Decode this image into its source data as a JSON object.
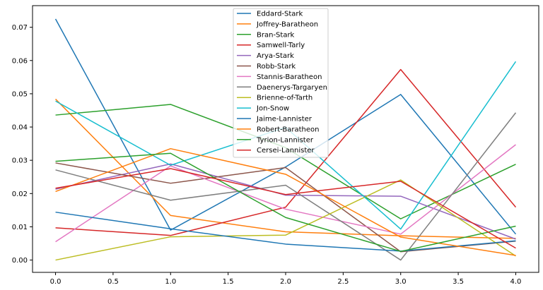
{
  "chart_data": {
    "type": "line",
    "title": "",
    "xlabel": "",
    "ylabel": "",
    "x": [
      0,
      1,
      2,
      3,
      4
    ],
    "xlim": [
      -0.2,
      4.2
    ],
    "ylim": [
      -0.0037,
      0.0765
    ],
    "xticks": [
      0.0,
      0.5,
      1.0,
      1.5,
      2.0,
      2.5,
      3.0,
      3.5,
      4.0
    ],
    "xtick_labels": [
      "0.0",
      "0.5",
      "1.0",
      "1.5",
      "2.0",
      "2.5",
      "3.0",
      "3.5",
      "4.0"
    ],
    "yticks": [
      0.0,
      0.01,
      0.02,
      0.03,
      0.04,
      0.05,
      0.06,
      0.07
    ],
    "ytick_labels": [
      "0.00",
      "0.01",
      "0.02",
      "0.03",
      "0.04",
      "0.05",
      "0.06",
      "0.07"
    ],
    "grid": false,
    "legend_position": "top-center",
    "series": [
      {
        "name": "Eddard-Stark",
        "color": "#1f77b4",
        "values": [
          0.0725,
          0.009,
          0.028,
          0.0498,
          0.0078
        ]
      },
      {
        "name": "Joffrey-Baratheon",
        "color": "#ff7f0e",
        "values": [
          0.0484,
          0.0134,
          0.0085,
          0.0073,
          0.0065
        ]
      },
      {
        "name": "Bran-Stark",
        "color": "#2ca02c",
        "values": [
          0.0436,
          0.0468,
          0.0338,
          0.0124,
          0.0288
        ]
      },
      {
        "name": "Samwell-Tarly",
        "color": "#d62728",
        "values": [
          0.0097,
          0.0074,
          0.0159,
          0.0573,
          0.0159
        ]
      },
      {
        "name": "Arya-Stark",
        "color": "#9467bd",
        "values": [
          0.0213,
          0.0289,
          0.0195,
          0.0192,
          0.0063
        ]
      },
      {
        "name": "Robb-Stark",
        "color": "#8c564b",
        "values": [
          0.0292,
          0.0231,
          0.0278,
          0.0025,
          0.0057
        ]
      },
      {
        "name": "Stannis-Baratheon",
        "color": "#e377c2",
        "values": [
          0.0055,
          0.0283,
          0.0153,
          0.0078,
          0.0347
        ]
      },
      {
        "name": "Daenerys-Targaryen",
        "color": "#7f7f7f",
        "values": [
          0.0271,
          0.018,
          0.0225,
          0.0,
          0.0443
        ]
      },
      {
        "name": "Brienne-of-Tarth",
        "color": "#bcbd22",
        "values": [
          0.0,
          0.007,
          0.0075,
          0.0241,
          0.0012
        ]
      },
      {
        "name": "Jon-Snow",
        "color": "#17becf",
        "values": [
          0.0478,
          0.0285,
          0.0399,
          0.0093,
          0.0597
        ]
      },
      {
        "name": "Jaime-Lannister",
        "color": "#1f77b4",
        "values": [
          0.0144,
          0.0094,
          0.0048,
          0.0027,
          0.0058
        ]
      },
      {
        "name": "Robert-Baratheon",
        "color": "#ff7f0e",
        "values": [
          0.0206,
          0.0335,
          0.0258,
          0.0069,
          0.0014
        ]
      },
      {
        "name": "Tyrion-Lannister",
        "color": "#2ca02c",
        "values": [
          0.0297,
          0.0321,
          0.0128,
          0.0026,
          0.0102
        ]
      },
      {
        "name": "Cersei-Lannister",
        "color": "#d62728",
        "values": [
          0.0216,
          0.0275,
          0.0197,
          0.0237,
          0.0036
        ]
      }
    ]
  }
}
